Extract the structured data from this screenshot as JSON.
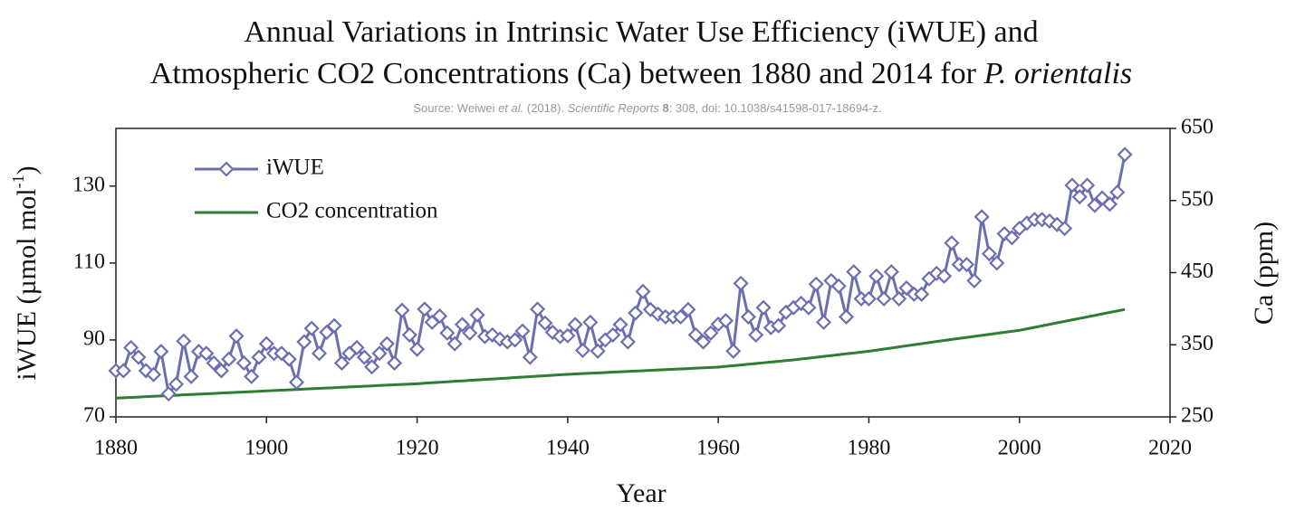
{
  "chart_data": {
    "type": "line",
    "title_line1": "Annual Variations in Intrinsic Water Use Efficiency (iWUE) and",
    "title_line2": "Atmospheric CO2 Concentrations (Ca) between 1880 and 2014 for",
    "title_species": "P. orientalis",
    "subtitle_parts": [
      {
        "text": "Source: Weiwei ",
        "style": "normal"
      },
      {
        "text": "et al.",
        "style": "italic"
      },
      {
        "text": " (2018). ",
        "style": "normal"
      },
      {
        "text": "Scientific Reports",
        "style": "italic"
      },
      {
        "text": " 8",
        "style": "bold"
      },
      {
        "text": ": 308, doi: 10.1038/s41598-017-18694-z.",
        "style": "normal"
      }
    ],
    "x_label": "Year",
    "y_label": "iWUE (µmol mol",
    "y_label_sup": "-1",
    "y_label_end": ")",
    "y2_label": "Ca (ppm)",
    "xlim": [
      1880,
      2020
    ],
    "xticks": [
      1880,
      1900,
      1920,
      1940,
      1960,
      1980,
      2000,
      2020
    ],
    "ylim": [
      70,
      145
    ],
    "yticks": [
      70,
      90,
      110,
      130
    ],
    "y2lim": [
      250,
      650
    ],
    "y2ticks": [
      250,
      350,
      450,
      550,
      650
    ],
    "x": [
      1880,
      1881,
      1882,
      1883,
      1884,
      1885,
      1886,
      1887,
      1888,
      1889,
      1890,
      1891,
      1892,
      1893,
      1894,
      1895,
      1896,
      1897,
      1898,
      1899,
      1900,
      1901,
      1902,
      1903,
      1904,
      1905,
      1906,
      1907,
      1908,
      1909,
      1910,
      1911,
      1912,
      1913,
      1914,
      1915,
      1916,
      1917,
      1918,
      1919,
      1920,
      1921,
      1922,
      1923,
      1924,
      1925,
      1926,
      1927,
      1928,
      1929,
      1930,
      1931,
      1932,
      1933,
      1934,
      1935,
      1936,
      1937,
      1938,
      1939,
      1940,
      1941,
      1942,
      1943,
      1944,
      1945,
      1946,
      1947,
      1948,
      1949,
      1950,
      1951,
      1952,
      1953,
      1954,
      1955,
      1956,
      1957,
      1958,
      1959,
      1960,
      1961,
      1962,
      1963,
      1964,
      1965,
      1966,
      1967,
      1968,
      1969,
      1970,
      1971,
      1972,
      1973,
      1974,
      1975,
      1976,
      1977,
      1978,
      1979,
      1980,
      1981,
      1982,
      1983,
      1984,
      1985,
      1986,
      1987,
      1988,
      1989,
      1990,
      1991,
      1992,
      1993,
      1994,
      1995,
      1996,
      1997,
      1998,
      1999,
      2000,
      2001,
      2002,
      2003,
      2004,
      2005,
      2006,
      2007,
      2008,
      2009,
      2010,
      2011,
      2012,
      2013,
      2014
    ],
    "series": [
      {
        "name": "iWUE",
        "color": "#6b6fb0",
        "marker": "diamond",
        "values": [
          82,
          82,
          88,
          85.5,
          82,
          81,
          87,
          76,
          78.5,
          89.7,
          80.5,
          87,
          86.5,
          84,
          82,
          85,
          91,
          84,
          80.5,
          85.5,
          89,
          86.5,
          86.5,
          85,
          79,
          89.5,
          93,
          86.5,
          92,
          93.7,
          84,
          86.5,
          88,
          85.5,
          83,
          86.5,
          89,
          84,
          97.7,
          91.3,
          87.6,
          98,
          94.6,
          96.2,
          91.8,
          89,
          94,
          91.8,
          96.5,
          90.9,
          91.3,
          90.2,
          89.5,
          90,
          92.3,
          85.5,
          98,
          94.4,
          92,
          90.9,
          91.1,
          94,
          87.3,
          94.6,
          87.1,
          90,
          91.3,
          94,
          89.5,
          97,
          102.6,
          97.9,
          96.7,
          96,
          96,
          96,
          97.9,
          91.3,
          89.5,
          91.8,
          94.1,
          95,
          87.1,
          104.7,
          96,
          91.3,
          98.4,
          93.2,
          93.7,
          97.2,
          98.4,
          99.5,
          98.4,
          104.5,
          94.6,
          105.4,
          104,
          96,
          107.7,
          100.7,
          100.7,
          106.6,
          100.7,
          107.7,
          100.7,
          103.5,
          101.9,
          101.9,
          105.9,
          107.3,
          106.6,
          115.2,
          109.6,
          109.6,
          105.4,
          122,
          112.4,
          110,
          117.6,
          116.6,
          119,
          120.4,
          121.3,
          121.3,
          120.9,
          120,
          119,
          130.2,
          127.2,
          130.2,
          125,
          126.9,
          125.3,
          128.4,
          138.2
        ]
      },
      {
        "name": "CO2 concentration",
        "color": "#2e7d32",
        "marker": "none",
        "axis": "y2",
        "values": [
          276,
          276.5,
          277,
          277.5,
          278,
          278.5,
          279,
          279.5,
          280,
          280.5,
          281,
          281.5,
          282,
          282.5,
          283,
          283.5,
          284,
          284.5,
          285,
          285.5,
          286,
          286.5,
          287,
          287.5,
          288,
          288.5,
          289,
          289.5,
          290,
          290.5,
          291,
          291.5,
          292,
          292.5,
          293,
          293.5,
          294,
          294.5,
          295,
          295.5,
          296,
          296.7,
          297.3,
          298,
          298.6,
          299.3,
          299.9,
          300.6,
          301.2,
          301.9,
          302.5,
          303.2,
          303.8,
          304.5,
          305.1,
          305.8,
          306.4,
          307.1,
          307.7,
          308.4,
          309,
          309.5,
          310,
          310.5,
          311,
          311.5,
          312,
          312.5,
          313,
          313.5,
          314,
          314.5,
          315,
          315.5,
          316,
          316.5,
          317,
          317.5,
          318,
          318.5,
          319,
          320,
          321,
          322,
          323,
          324,
          325,
          326,
          327,
          328,
          329,
          330.2,
          331.4,
          332.6,
          333.8,
          335,
          336.2,
          337.4,
          338.6,
          339.8,
          341,
          342.5,
          344,
          345.5,
          347,
          348.5,
          350,
          351.5,
          353,
          354.5,
          356,
          357.4,
          358.8,
          360.2,
          361.6,
          363,
          364.4,
          365.8,
          367.2,
          368.6,
          370,
          372.1,
          374.1,
          376.2,
          378.3,
          380.4,
          382.4,
          384.5,
          386.6,
          388.6,
          390.7,
          392.8,
          394.9,
          396.9,
          399
        ]
      }
    ]
  }
}
